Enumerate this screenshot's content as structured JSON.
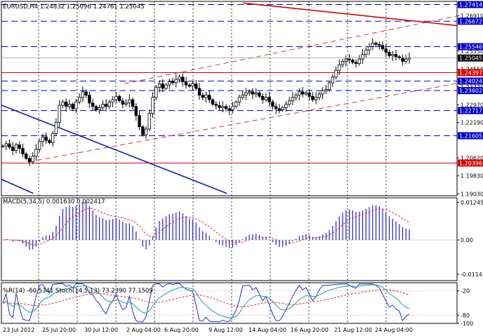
{
  "colors": {
    "background": "#ffffff",
    "grid": "#000000",
    "candle": "#000000",
    "blue_level": "#0000c8",
    "red_level": "#d40000",
    "trend_channel": "#e03030",
    "blue_trend": "#1020c0",
    "macd_hist": "#2020cc",
    "macd_signal": "#e03030",
    "wpr": "#2030d0",
    "stoch_main": "#20a0a0",
    "stoch_signal": "#e03030",
    "price_tag": "#000000",
    "blue_tag": "#0000c8",
    "red_tag": "#d40000"
  },
  "chart_data": [
    {
      "type": "candlestick",
      "title": "EURUSD,H4  1.24832 1.25096 1.24761 1.25045",
      "symbol": "EURUSD",
      "timeframe": "H4",
      "ylim": [
        1.1895,
        1.2755
      ],
      "y_ticks": [
        "1.26910",
        "1.25350",
        "1.24550",
        "1.23770",
        "1.22970",
        "1.22190",
        "1.20620",
        "1.19830",
        "1.19030"
      ],
      "y_tick_values": [
        1.2691,
        1.2535,
        1.2455,
        1.2377,
        1.2297,
        1.2219,
        1.2062,
        1.1983,
        1.1903
      ],
      "x_ticks": [
        "23 Jul 2012",
        "25 Jul 20:00",
        "30 Jul 12:00",
        "2 Aug 04:00",
        "6 Aug 20:00",
        "9 Aug 12:00",
        "14 Aug 04:00",
        "16 Aug 20:00",
        "21 Aug 12:00",
        "24 Aug 04:00"
      ],
      "current_price": "1.25045",
      "horizontal_levels": [
        {
          "value": 1.2741,
          "label": "1.27414",
          "color": "blue",
          "style": "dashed"
        },
        {
          "value": 1.26672,
          "label": "1.26672",
          "color": "blue",
          "style": "dashed"
        },
        {
          "value": 1.25546,
          "label": "1.25546",
          "color": "blue",
          "style": "dashed"
        },
        {
          "value": 1.24397,
          "label": "1.24397",
          "color": "red",
          "style": "solid"
        },
        {
          "value": 1.24024,
          "label": "1.24024",
          "color": "blue",
          "style": "dashed"
        },
        {
          "value": 1.23602,
          "label": "1.23602",
          "color": "blue",
          "style": "dashed"
        },
        {
          "value": 1.22717,
          "label": "1.22717",
          "color": "blue",
          "style": "dashed"
        },
        {
          "value": 1.21605,
          "label": "1.21605",
          "color": "blue",
          "style": "dashed"
        },
        {
          "value": 1.20396,
          "label": "1.20396",
          "color": "red",
          "style": "solid"
        }
      ],
      "trendlines": [
        {
          "name": "channel-upper",
          "style": "dashed",
          "color": "red",
          "from": [
            0.27,
            1.2391
          ],
          "to": [
            1.0,
            1.269
          ]
        },
        {
          "name": "channel-lower",
          "style": "dashed",
          "color": "red",
          "from": [
            0.06,
            1.2045
          ],
          "to": [
            1.0,
            1.2392
          ]
        },
        {
          "name": "resistance",
          "style": "solid",
          "color": "red",
          "from": [
            0.53,
            1.2748
          ],
          "to": [
            1.0,
            1.2648
          ]
        },
        {
          "name": "blue-upper",
          "style": "solid",
          "color": "blue",
          "from": [
            0.0,
            1.2296
          ],
          "to": [
            0.495,
            1.1905
          ]
        },
        {
          "name": "blue-lower",
          "style": "solid",
          "color": "blue",
          "from": [
            0.0,
            1.1968
          ],
          "to": [
            0.07,
            1.1905
          ]
        }
      ],
      "candles_anchor_closes": [
        1.2115,
        1.2125,
        1.211,
        1.2095,
        1.212,
        1.2105,
        1.208,
        1.206,
        1.2045,
        1.207,
        1.21,
        1.2135,
        1.2155,
        1.214,
        1.213,
        1.217,
        1.222,
        1.2295,
        1.231,
        1.229,
        1.23,
        1.228,
        1.231,
        1.233,
        1.2355,
        1.234,
        1.2305,
        1.229,
        1.2275,
        1.2285,
        1.23,
        1.229,
        1.231,
        1.232,
        1.2335,
        1.2315,
        1.23,
        1.2305,
        1.232,
        1.229,
        1.225,
        1.22,
        1.2165,
        1.219,
        1.226,
        1.233,
        1.2375,
        1.239,
        1.237,
        1.2385,
        1.24,
        1.2395,
        1.241,
        1.242,
        1.24,
        1.2385,
        1.238,
        1.239,
        1.237,
        1.234,
        1.233,
        1.234,
        1.232,
        1.23,
        1.2295,
        1.2285,
        1.229,
        1.228,
        1.2275,
        1.229,
        1.231,
        1.233,
        1.234,
        1.235,
        1.2355,
        1.2345,
        1.235,
        1.2335,
        1.232,
        1.233,
        1.231,
        1.229,
        1.228,
        1.2275,
        1.2285,
        1.23,
        1.2315,
        1.233,
        1.234,
        1.2355,
        1.2345,
        1.235,
        1.2335,
        1.232,
        1.233,
        1.2345,
        1.236,
        1.2365,
        1.2395,
        1.242,
        1.245,
        1.2475,
        1.249,
        1.25,
        1.2495,
        1.2485,
        1.248,
        1.25,
        1.252,
        1.254,
        1.2555,
        1.257,
        1.2565,
        1.256,
        1.2545,
        1.253,
        1.2515,
        1.252,
        1.251,
        1.2505,
        1.249,
        1.25,
        1.2505
      ]
    },
    {
      "type": "histogram",
      "title": "MACD(5,34,5) 0.001630 0.002417",
      "ylim": [
        -0.0135,
        0.014
      ],
      "y_ticks": [
        "0.01245",
        "0.00",
        "-0.0114"
      ],
      "y_tick_values": [
        0.01245,
        0.0,
        -0.0114
      ]
    },
    {
      "type": "line",
      "title": "%R(14) -60.5341  Stoch(14,5,13) 73.2390 77.1509",
      "ylim": [
        -100,
        0
      ],
      "y_ticks": [
        "-20",
        "-80",
        "-100"
      ],
      "y_tick_values": [
        -20,
        -80,
        -100
      ],
      "series": [
        {
          "name": "%R(14)"
        },
        {
          "name": "Stoch(14,5,13)"
        }
      ]
    }
  ]
}
